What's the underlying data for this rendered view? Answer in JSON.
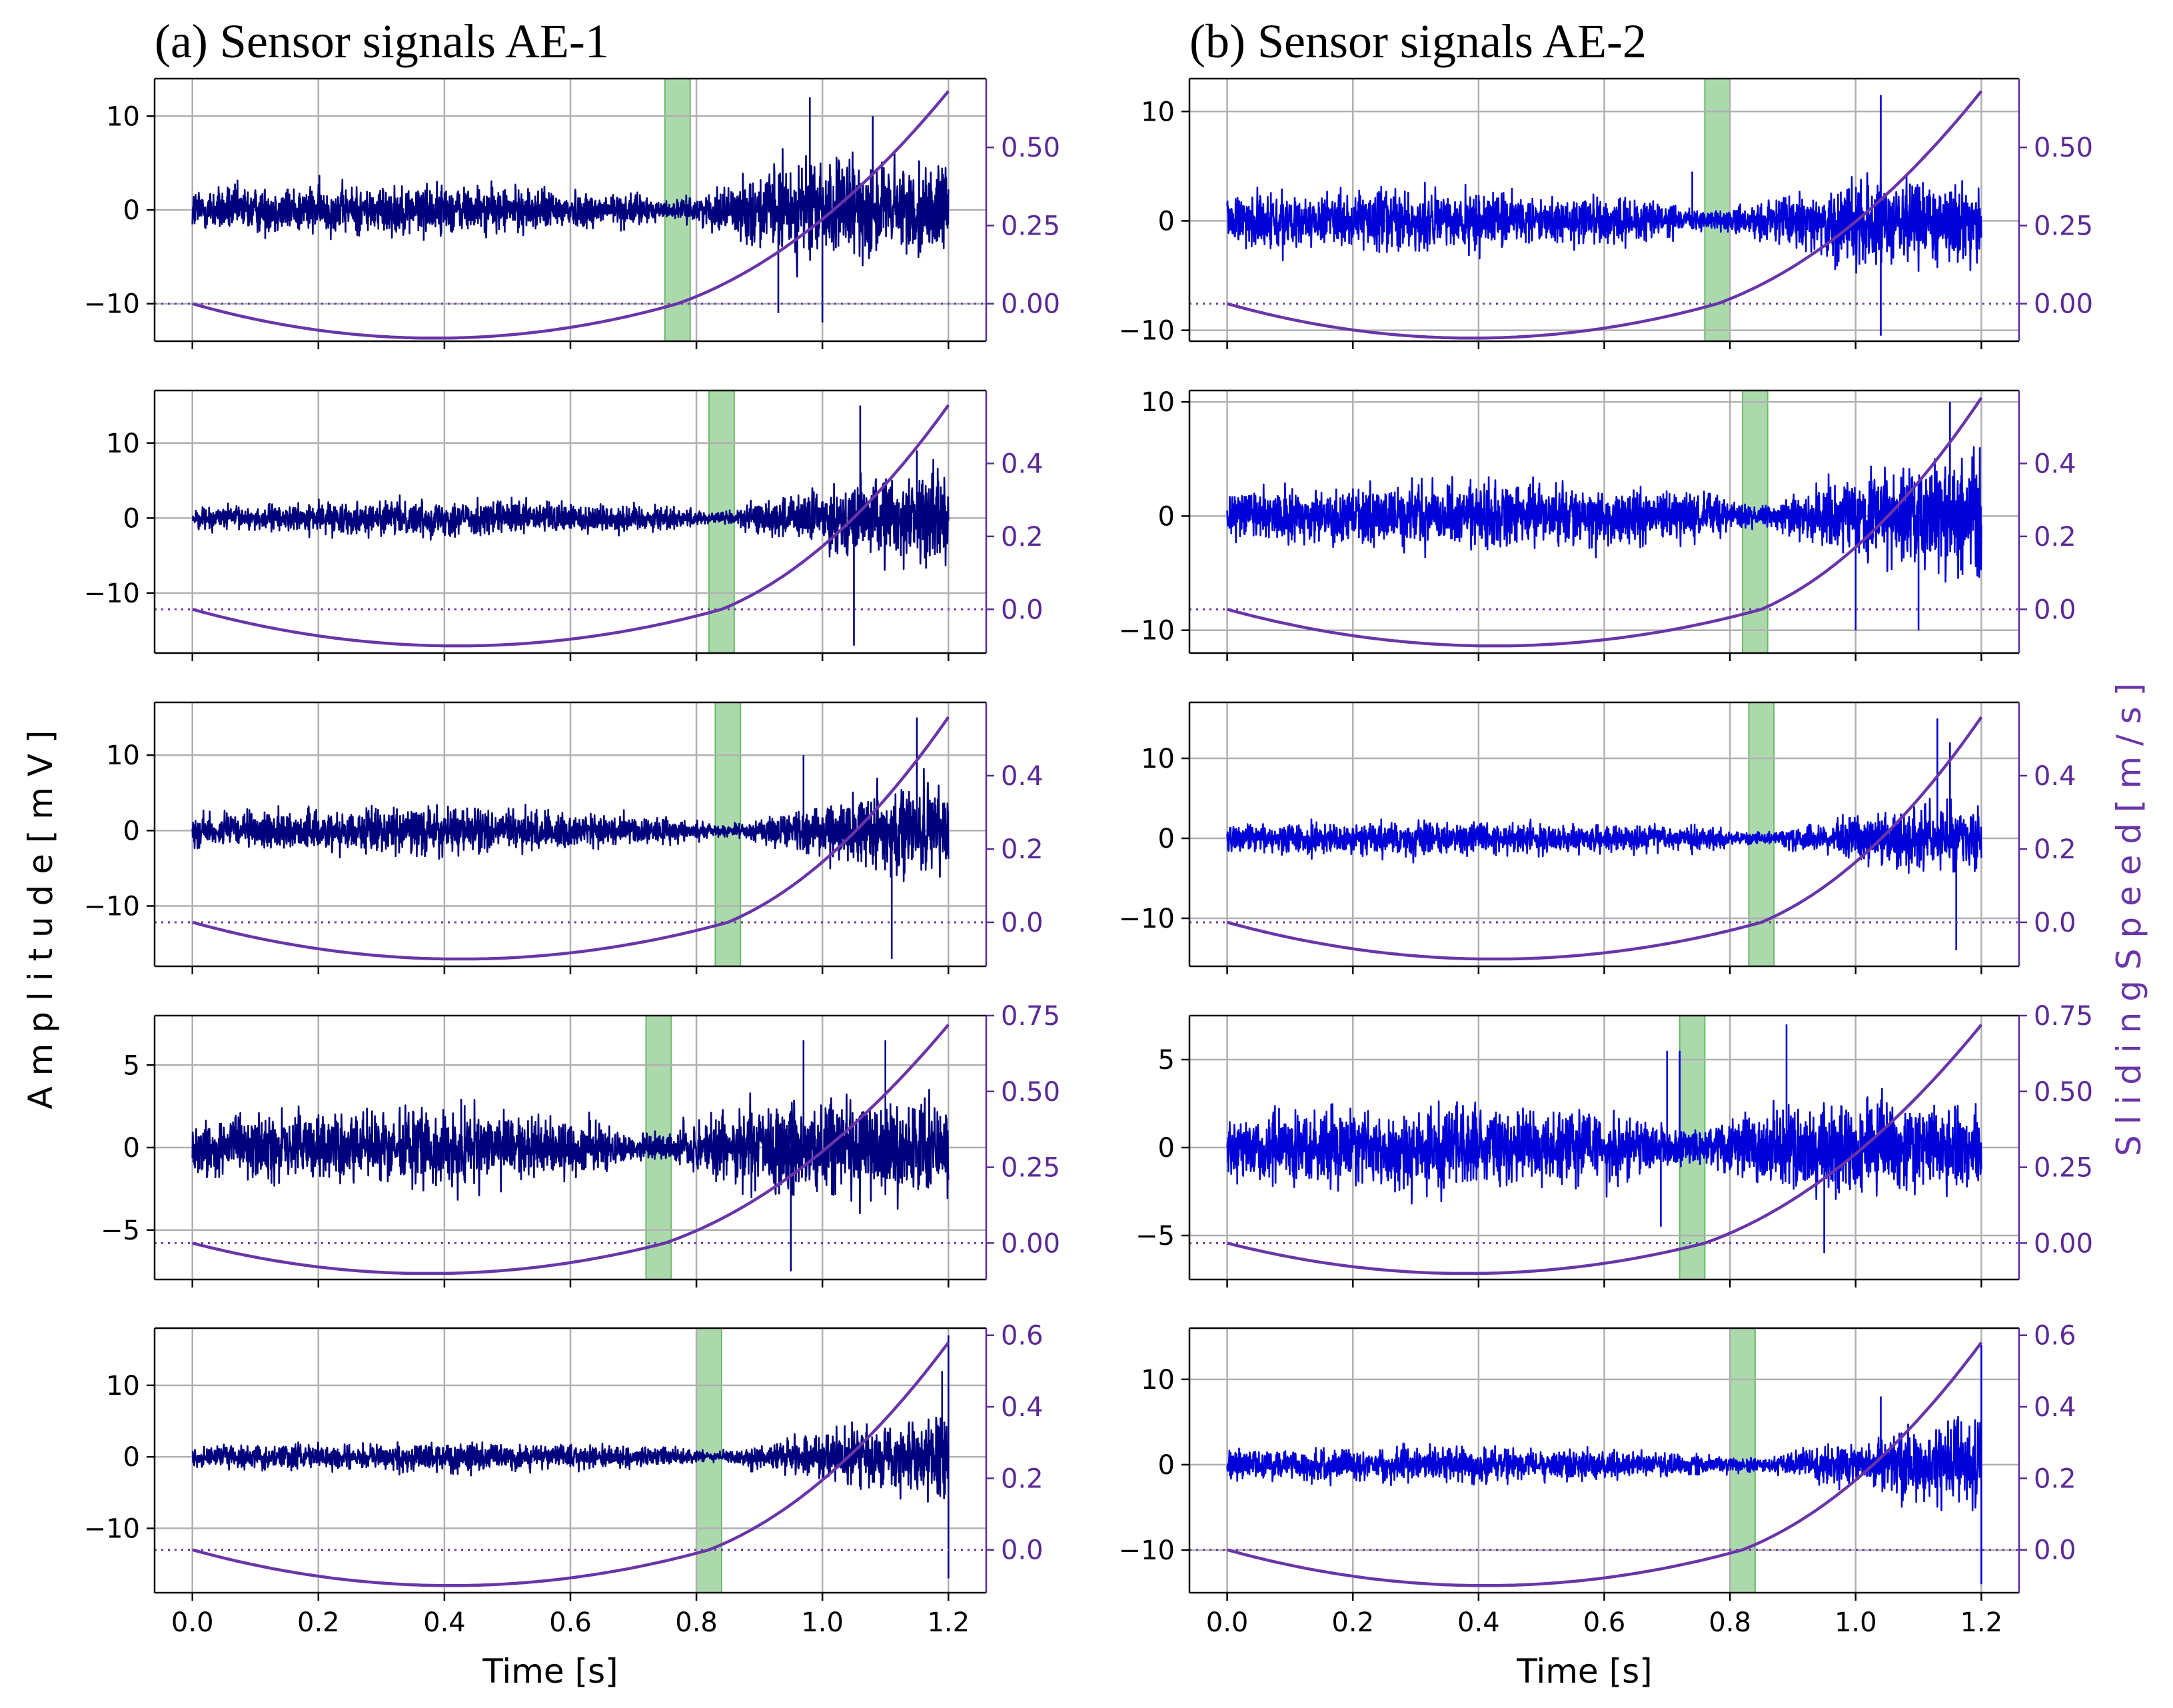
{
  "figure": {
    "ylabel_left": "A m p l i t u d e   [ m V ]",
    "ylabel_right": "S l i d i n g   S p e e d   [ m / s ]",
    "xlabel": "Time [s]",
    "colors": {
      "ae1_signal": "#00007f",
      "ae2_signal": "#0000d8",
      "speed": "#6a35a8",
      "speed_axis": "#5a2a96",
      "highlight": "#90cc90",
      "grid": "#b0b0b0",
      "axis": "#000000"
    }
  },
  "chart_data": [
    {
      "type": "line",
      "panel_title": "(a) Sensor signals AE-1",
      "sensor": "AE-1",
      "x_label": "Time [s]",
      "x_range": [
        -0.06,
        1.26
      ],
      "x_ticks": [
        "0.0",
        "0.2",
        "0.4",
        "0.6",
        "0.8",
        "1.0",
        "1.2"
      ],
      "x_tick_values": [
        0.0,
        0.2,
        0.4,
        0.6,
        0.8,
        1.0,
        1.2
      ],
      "rows": [
        {
          "amp_range": [
            -14,
            14
          ],
          "amp_ticks": [
            -10,
            0,
            10
          ],
          "amp_tick_labels": [
            "−10",
            "0",
            "10"
          ],
          "speed_range": [
            -0.12,
            0.72
          ],
          "speed_ticks": [
            0.0,
            0.25,
            0.5
          ],
          "speed_tick_labels": [
            "0.00",
            "0.25",
            "0.50"
          ],
          "envelope": [
            [
              0.0,
              3.5
            ],
            [
              0.4,
              3.8
            ],
            [
              0.7,
              2.5
            ],
            [
              0.76,
              1.2
            ],
            [
              0.82,
              2.5
            ],
            [
              0.95,
              7.5
            ],
            [
              1.05,
              7.5
            ],
            [
              1.2,
              6.5
            ]
          ],
          "spikes": [
            [
              0.98,
              12
            ],
            [
              1.08,
              10
            ],
            [
              1.0,
              -12
            ],
            [
              0.93,
              -11
            ]
          ],
          "highlight": [
            0.75,
            0.79
          ],
          "speed": [
            [
              0.0,
              0.0
            ],
            [
              0.4,
              -0.11
            ],
            [
              0.77,
              0.0
            ],
            [
              1.2,
              0.68
            ]
          ],
          "stop_time": 0.77
        },
        {
          "amp_range": [
            -18,
            17
          ],
          "amp_ticks": [
            -10,
            0,
            10
          ],
          "amp_tick_labels": [
            "−10",
            "0",
            "10"
          ],
          "speed_range": [
            -0.12,
            0.6
          ],
          "speed_ticks": [
            0.0,
            0.2,
            0.4
          ],
          "speed_tick_labels": [
            "0.0",
            "0.2",
            "0.4"
          ],
          "envelope": [
            [
              0.0,
              2.0
            ],
            [
              0.4,
              3.5
            ],
            [
              0.75,
              2.5
            ],
            [
              0.83,
              1.0
            ],
            [
              0.9,
              3.0
            ],
            [
              1.05,
              7.0
            ],
            [
              1.2,
              9.0
            ]
          ],
          "spikes": [
            [
              1.06,
              15
            ],
            [
              1.05,
              -17
            ],
            [
              1.15,
              9
            ]
          ],
          "highlight": [
            0.82,
            0.86
          ],
          "speed": [
            [
              0.0,
              0.0
            ],
            [
              0.4,
              -0.1
            ],
            [
              0.84,
              0.0
            ],
            [
              1.2,
              0.56
            ]
          ],
          "stop_time": 0.84
        },
        {
          "amp_range": [
            -18,
            17
          ],
          "amp_ticks": [
            -10,
            0,
            10
          ],
          "amp_tick_labels": [
            "−10",
            "0",
            "10"
          ],
          "speed_range": [
            -0.12,
            0.6
          ],
          "speed_ticks": [
            0.0,
            0.2,
            0.4
          ],
          "speed_tick_labels": [
            "0.0",
            "0.2",
            "0.4"
          ],
          "envelope": [
            [
              0.0,
              3.0
            ],
            [
              0.4,
              4.5
            ],
            [
              0.75,
              2.5
            ],
            [
              0.85,
              1.0
            ],
            [
              0.95,
              3.5
            ],
            [
              1.05,
              6.5
            ],
            [
              1.2,
              9.0
            ]
          ],
          "spikes": [
            [
              1.15,
              15
            ],
            [
              0.97,
              10
            ],
            [
              1.11,
              -17
            ]
          ],
          "highlight": [
            0.83,
            0.87
          ],
          "speed": [
            [
              0.0,
              0.0
            ],
            [
              0.4,
              -0.1
            ],
            [
              0.85,
              0.0
            ],
            [
              1.2,
              0.56
            ]
          ],
          "stop_time": 0.85
        },
        {
          "amp_range": [
            -8,
            8
          ],
          "amp_ticks": [
            -5,
            0,
            5
          ],
          "amp_tick_labels": [
            "−5",
            "0",
            "5"
          ],
          "speed_range": [
            -0.12,
            0.75
          ],
          "speed_ticks": [
            0.0,
            0.25,
            0.5,
            0.75
          ],
          "speed_tick_labels": [
            "0.00",
            "0.25",
            "0.50",
            "0.75"
          ],
          "envelope": [
            [
              0.0,
              2.5
            ],
            [
              0.3,
              3.5
            ],
            [
              0.6,
              2.5
            ],
            [
              0.74,
              1.0
            ],
            [
              0.82,
              3.0
            ],
            [
              1.0,
              4.5
            ],
            [
              1.2,
              3.5
            ]
          ],
          "spikes": [
            [
              0.97,
              6.5
            ],
            [
              1.1,
              6.5
            ],
            [
              0.95,
              -7.5
            ]
          ],
          "highlight": [
            0.72,
            0.76
          ],
          "speed": [
            [
              0.0,
              0.0
            ],
            [
              0.4,
              -0.1
            ],
            [
              0.75,
              0.0
            ],
            [
              1.2,
              0.72
            ]
          ],
          "stop_time": 0.75
        },
        {
          "amp_range": [
            -19,
            18
          ],
          "amp_ticks": [
            -10,
            0,
            10
          ],
          "amp_tick_labels": [
            "−10",
            "0",
            "10"
          ],
          "speed_range": [
            -0.12,
            0.62
          ],
          "speed_ticks": [
            0.0,
            0.2,
            0.4,
            0.6
          ],
          "speed_tick_labels": [
            "0.0",
            "0.2",
            "0.4",
            "0.6"
          ],
          "envelope": [
            [
              0.0,
              2.0
            ],
            [
              0.4,
              3.0
            ],
            [
              0.75,
              1.8
            ],
            [
              0.82,
              1.0
            ],
            [
              0.95,
              3.5
            ],
            [
              1.1,
              7.0
            ],
            [
              1.2,
              9.0
            ]
          ],
          "spikes": [
            [
              1.2,
              17
            ],
            [
              1.2,
              -17
            ],
            [
              1.19,
              12
            ]
          ],
          "highlight": [
            0.8,
            0.84
          ],
          "speed": [
            [
              0.0,
              0.0
            ],
            [
              0.4,
              -0.1
            ],
            [
              0.82,
              0.0
            ],
            [
              1.2,
              0.58
            ]
          ],
          "stop_time": 0.82
        }
      ]
    },
    {
      "type": "line",
      "panel_title": "(b) Sensor signals AE-2",
      "sensor": "AE-2",
      "x_label": "Time [s]",
      "x_range": [
        -0.06,
        1.26
      ],
      "x_ticks": [
        "0.0",
        "0.2",
        "0.4",
        "0.6",
        "0.8",
        "1.0",
        "1.2"
      ],
      "x_tick_values": [
        0.0,
        0.2,
        0.4,
        0.6,
        0.8,
        1.0,
        1.2
      ],
      "rows": [
        {
          "amp_range": [
            -11,
            13
          ],
          "amp_ticks": [
            -10,
            0,
            10
          ],
          "amp_tick_labels": [
            "−10",
            "0",
            "10"
          ],
          "speed_range": [
            -0.12,
            0.72
          ],
          "speed_ticks": [
            0.0,
            0.25,
            0.5
          ],
          "speed_tick_labels": [
            "0.00",
            "0.25",
            "0.50"
          ],
          "envelope": [
            [
              0.0,
              3.5
            ],
            [
              0.4,
              3.8
            ],
            [
              0.7,
              2.5
            ],
            [
              0.77,
              1.2
            ],
            [
              0.84,
              2.5
            ],
            [
              0.95,
              5.0
            ],
            [
              1.05,
              6.0
            ],
            [
              1.2,
              4.5
            ]
          ],
          "spikes": [
            [
              1.04,
              11.5
            ],
            [
              1.04,
              -10.5
            ],
            [
              0.74,
              4.5
            ]
          ],
          "highlight": [
            0.76,
            0.8
          ],
          "speed": [
            [
              0.0,
              0.0
            ],
            [
              0.4,
              -0.11
            ],
            [
              0.78,
              0.0
            ],
            [
              1.2,
              0.68
            ]
          ],
          "stop_time": 0.78
        },
        {
          "amp_range": [
            -12,
            11
          ],
          "amp_ticks": [
            -10,
            0,
            10
          ],
          "amp_tick_labels": [
            "−10",
            "0",
            "10"
          ],
          "speed_range": [
            -0.12,
            0.6
          ],
          "speed_ticks": [
            0.0,
            0.2,
            0.4
          ],
          "speed_tick_labels": [
            "0.0",
            "0.2",
            "0.4"
          ],
          "envelope": [
            [
              0.0,
              3.0
            ],
            [
              0.4,
              4.0
            ],
            [
              0.75,
              3.0
            ],
            [
              0.84,
              1.2
            ],
            [
              0.92,
              3.0
            ],
            [
              1.05,
              6.5
            ],
            [
              1.2,
              8.5
            ]
          ],
          "spikes": [
            [
              1.15,
              10
            ],
            [
              1.0,
              -10
            ],
            [
              1.1,
              -10
            ]
          ],
          "highlight": [
            0.82,
            0.86
          ],
          "speed": [
            [
              0.0,
              0.0
            ],
            [
              0.4,
              -0.1
            ],
            [
              0.85,
              0.0
            ],
            [
              1.2,
              0.58
            ]
          ],
          "stop_time": 0.85
        },
        {
          "amp_range": [
            -16,
            17
          ],
          "amp_ticks": [
            -10,
            0,
            10
          ],
          "amp_tick_labels": [
            "−10",
            "0",
            "10"
          ],
          "speed_range": [
            -0.12,
            0.6
          ],
          "speed_ticks": [
            0.0,
            0.2,
            0.4
          ],
          "speed_tick_labels": [
            "0.0",
            "0.2",
            "0.4"
          ],
          "envelope": [
            [
              0.0,
              2.5
            ],
            [
              0.4,
              3.0
            ],
            [
              0.75,
              2.0
            ],
            [
              0.85,
              1.0
            ],
            [
              0.95,
              2.5
            ],
            [
              1.05,
              5.5
            ],
            [
              1.2,
              6.5
            ]
          ],
          "spikes": [
            [
              1.13,
              15
            ],
            [
              1.15,
              12
            ],
            [
              1.16,
              -14
            ]
          ],
          "highlight": [
            0.83,
            0.87
          ],
          "speed": [
            [
              0.0,
              0.0
            ],
            [
              0.4,
              -0.1
            ],
            [
              0.85,
              0.0
            ],
            [
              1.2,
              0.56
            ]
          ],
          "stop_time": 0.85
        },
        {
          "amp_range": [
            -7.5,
            7.5
          ],
          "amp_ticks": [
            -5,
            0,
            5
          ],
          "amp_tick_labels": [
            "−5",
            "0",
            "5"
          ],
          "speed_range": [
            -0.12,
            0.75
          ],
          "speed_ticks": [
            0.0,
            0.25,
            0.5,
            0.75
          ],
          "speed_tick_labels": [
            "0.00",
            "0.25",
            "0.50",
            "0.75"
          ],
          "envelope": [
            [
              0.0,
              2.5
            ],
            [
              0.3,
              3.5
            ],
            [
              0.6,
              2.8
            ],
            [
              0.75,
              1.2
            ],
            [
              0.82,
              2.8
            ],
            [
              1.0,
              4.0
            ],
            [
              1.2,
              3.0
            ]
          ],
          "spikes": [
            [
              0.89,
              7
            ],
            [
              0.7,
              5.5
            ],
            [
              0.72,
              5.5
            ],
            [
              0.95,
              -6
            ],
            [
              0.69,
              -4.5
            ]
          ],
          "highlight": [
            0.72,
            0.76
          ],
          "speed": [
            [
              0.0,
              0.0
            ],
            [
              0.4,
              -0.1
            ],
            [
              0.76,
              0.0
            ],
            [
              1.2,
              0.72
            ]
          ],
          "stop_time": 0.76
        },
        {
          "amp_range": [
            -15,
            16
          ],
          "amp_ticks": [
            -10,
            0,
            10
          ],
          "amp_tick_labels": [
            "−10",
            "0",
            "10"
          ],
          "speed_range": [
            -0.12,
            0.62
          ],
          "speed_ticks": [
            0.0,
            0.2,
            0.4,
            0.6
          ],
          "speed_tick_labels": [
            "0.0",
            "0.2",
            "0.4",
            "0.6"
          ],
          "envelope": [
            [
              0.0,
              2.5
            ],
            [
              0.4,
              3.0
            ],
            [
              0.75,
              1.8
            ],
            [
              0.83,
              1.0
            ],
            [
              0.95,
              3.0
            ],
            [
              1.1,
              6.0
            ],
            [
              1.2,
              8.0
            ]
          ],
          "spikes": [
            [
              1.2,
              14
            ],
            [
              1.2,
              -14
            ],
            [
              1.04,
              8
            ]
          ],
          "highlight": [
            0.8,
            0.84
          ],
          "speed": [
            [
              0.0,
              0.0
            ],
            [
              0.4,
              -0.1
            ],
            [
              0.82,
              0.0
            ],
            [
              1.2,
              0.58
            ]
          ],
          "stop_time": 0.82
        }
      ]
    }
  ]
}
